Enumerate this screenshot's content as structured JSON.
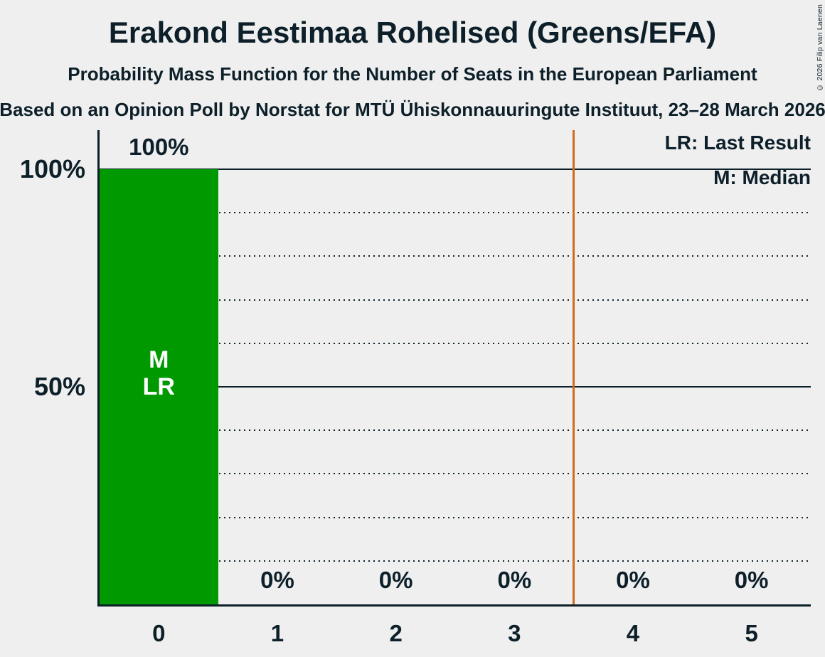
{
  "header": {
    "title": "Erakond Eestimaa Rohelised (Greens/EFA)",
    "subtitle": "Probability Mass Function for the Number of Seats in the European Parliament",
    "source": "Based on an Opinion Poll by Norstat for MTÜ Ühiskonnauuringute Instituut, 23–28 March 2026"
  },
  "copyright": "© 2026 Filip van Laenen",
  "legend": [
    {
      "id": "last-result",
      "label": "LR: Last Result"
    },
    {
      "id": "median",
      "label": "M: Median"
    }
  ],
  "colors": {
    "background": "#EFEFEF",
    "text": "#0D1F29",
    "bar": "#009900",
    "bar_text": "#FFFFFF",
    "marker_line": "#D2691E"
  },
  "chart_data": {
    "type": "bar",
    "categories": [
      "0",
      "1",
      "2",
      "3",
      "4",
      "5"
    ],
    "values": [
      100,
      0,
      0,
      0,
      0,
      0
    ],
    "value_labels": [
      "100%",
      "0%",
      "0%",
      "0%",
      "0%",
      "0%"
    ],
    "ylim": [
      0,
      100
    ],
    "y_ticks": [
      {
        "value": 100,
        "label": "100%"
      },
      {
        "value": 50,
        "label": "50%"
      }
    ],
    "solid_gridlines": [
      100,
      50
    ],
    "dotted_gridlines": [
      90,
      80,
      70,
      60,
      40,
      30,
      20,
      10
    ],
    "bar_annotations": [
      {
        "bar": "0",
        "lines": [
          "M",
          "LR"
        ]
      }
    ],
    "median_seats": "0",
    "last_result_seats": "0",
    "vertical_marker_position": 3.5,
    "legend_position": "top-right",
    "grid": "dotted-every-10pct"
  }
}
